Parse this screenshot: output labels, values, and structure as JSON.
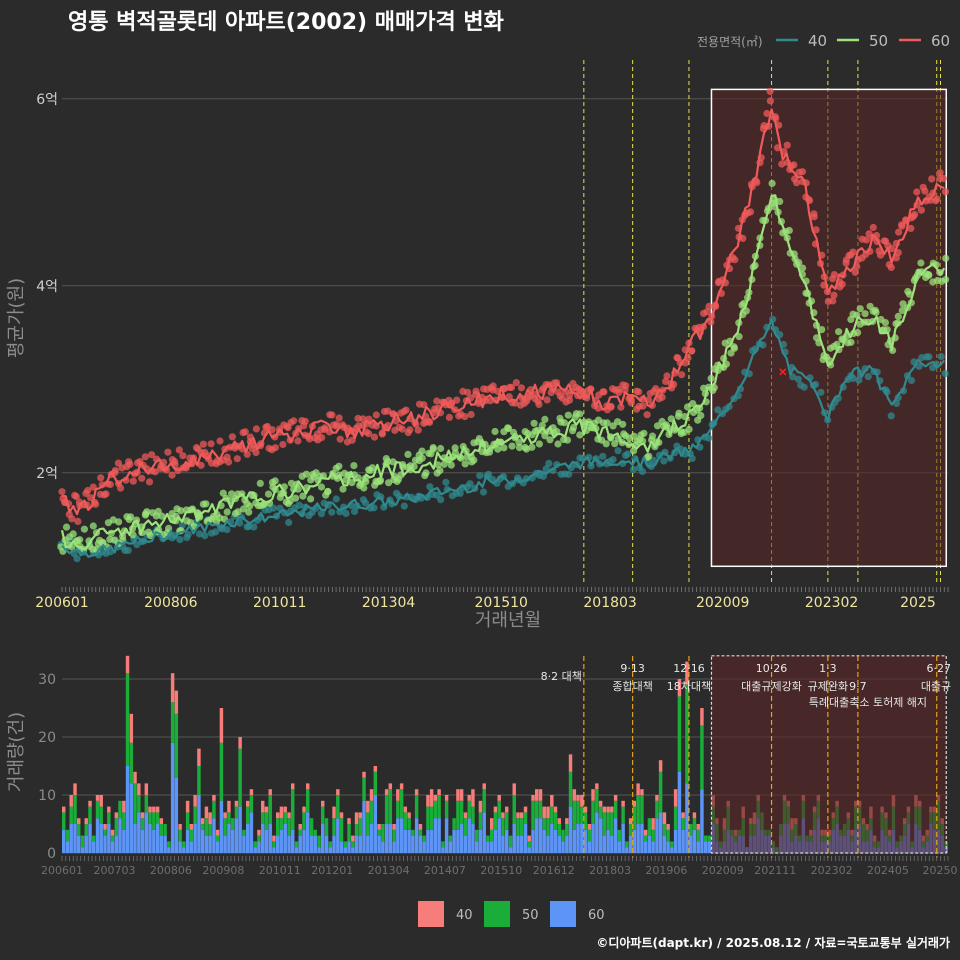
{
  "title": "영통 벽적골롯데 아파트(2002) 매매가격 변화",
  "footer": "©디아파트(dapt.kr) / 2025.08.12 / 자료=국토교통부 실거래가",
  "colors": {
    "background": "#2b2b2b",
    "series_40_line": "#2f8a8f",
    "series_50_line": "#9be37a",
    "series_60_line": "#ef5a5a",
    "bar_40": "#f77d7a",
    "bar_50": "#1aad3a",
    "bar_60": "#5d95f7",
    "vline": "#e8e24a",
    "vline_bottom": "#e3a51b",
    "highlight": "#5a2424"
  },
  "chart_data": [
    {
      "type": "line",
      "title": "영통 벽적골롯데 아파트(2002) 매매가격 변화",
      "xlabel": "거래년월",
      "ylabel": "평균가(원)",
      "x_range": [
        "2006-01",
        "2025-08"
      ],
      "ylim": [
        0.8,
        6.5
      ],
      "y_unit": "억",
      "yticks": [
        2,
        4,
        6
      ],
      "ytick_labels": [
        "2억",
        "4억",
        "6억"
      ],
      "xtick_labels": [
        "200601",
        "200806",
        "201011",
        "201304",
        "201510",
        "201803",
        "202009",
        "202302",
        "2025"
      ],
      "legend": {
        "title": "전용면적(㎡)",
        "position": "top-right",
        "entries": [
          "40",
          "50",
          "60"
        ]
      },
      "vlines": [
        "2017-08",
        "2018-09",
        "2019-12",
        "2021-10",
        "2023-01",
        "2023-09",
        "2025-06",
        "2025-07"
      ],
      "highlight_box": {
        "from": "2020-06",
        "to": "2025-08",
        "ymin": 1.0,
        "ymax": 6.1
      },
      "marker_x": {
        "date": "2022-01",
        "value": 3.08
      },
      "series": [
        {
          "name": "40",
          "points": [
            [
              "2006-01",
              1.22
            ],
            [
              "2006-06",
              1.15
            ],
            [
              "2007-01",
              1.17
            ],
            [
              "2007-06",
              1.24
            ],
            [
              "2008-01",
              1.3
            ],
            [
              "2008-06",
              1.35
            ],
            [
              "2009-01",
              1.4
            ],
            [
              "2009-06",
              1.45
            ],
            [
              "2010-01",
              1.5
            ],
            [
              "2010-06",
              1.52
            ],
            [
              "2011-01",
              1.55
            ],
            [
              "2011-06",
              1.6
            ],
            [
              "2012-01",
              1.64
            ],
            [
              "2012-06",
              1.66
            ],
            [
              "2013-01",
              1.68
            ],
            [
              "2013-06",
              1.7
            ],
            [
              "2014-01",
              1.75
            ],
            [
              "2014-06",
              1.8
            ],
            [
              "2015-01",
              1.85
            ],
            [
              "2015-06",
              1.9
            ],
            [
              "2016-01",
              1.93
            ],
            [
              "2016-06",
              1.98
            ],
            [
              "2017-01",
              2.05
            ],
            [
              "2017-06",
              2.1
            ],
            [
              "2018-01",
              2.12
            ],
            [
              "2018-06",
              2.15
            ],
            [
              "2019-01",
              2.1
            ],
            [
              "2019-06",
              2.18
            ],
            [
              "2020-01",
              2.25
            ],
            [
              "2020-06",
              2.45
            ],
            [
              "2021-01",
              2.9
            ],
            [
              "2021-06",
              3.3
            ],
            [
              "2021-10",
              3.6
            ],
            [
              "2022-03",
              3.1
            ],
            [
              "2022-10",
              2.9
            ],
            [
              "2023-01",
              2.6
            ],
            [
              "2023-06",
              3.05
            ],
            [
              "2024-01",
              3.1
            ],
            [
              "2024-06",
              2.7
            ],
            [
              "2025-01",
              3.2
            ],
            [
              "2025-08",
              3.15
            ]
          ]
        },
        {
          "name": "50",
          "points": [
            [
              "2006-01",
              1.3
            ],
            [
              "2006-06",
              1.25
            ],
            [
              "2007-01",
              1.35
            ],
            [
              "2007-06",
              1.4
            ],
            [
              "2008-01",
              1.45
            ],
            [
              "2008-06",
              1.5
            ],
            [
              "2009-01",
              1.55
            ],
            [
              "2009-06",
              1.62
            ],
            [
              "2010-01",
              1.7
            ],
            [
              "2010-06",
              1.75
            ],
            [
              "2011-01",
              1.8
            ],
            [
              "2011-06",
              1.85
            ],
            [
              "2012-01",
              1.92
            ],
            [
              "2012-06",
              1.95
            ],
            [
              "2013-01",
              2.0
            ],
            [
              "2013-06",
              2.05
            ],
            [
              "2014-01",
              2.1
            ],
            [
              "2014-06",
              2.15
            ],
            [
              "2015-01",
              2.2
            ],
            [
              "2015-06",
              2.28
            ],
            [
              "2016-01",
              2.35
            ],
            [
              "2016-06",
              2.4
            ],
            [
              "2017-01",
              2.45
            ],
            [
              "2017-06",
              2.5
            ],
            [
              "2018-01",
              2.45
            ],
            [
              "2018-06",
              2.4
            ],
            [
              "2019-01",
              2.3
            ],
            [
              "2019-06",
              2.45
            ],
            [
              "2020-01",
              2.6
            ],
            [
              "2020-06",
              2.95
            ],
            [
              "2021-01",
              3.5
            ],
            [
              "2021-06",
              4.3
            ],
            [
              "2021-10",
              5.0
            ],
            [
              "2022-01",
              4.7
            ],
            [
              "2022-06",
              4.1
            ],
            [
              "2023-01",
              3.2
            ],
            [
              "2023-06",
              3.5
            ],
            [
              "2024-01",
              3.7
            ],
            [
              "2024-06",
              3.4
            ],
            [
              "2025-01",
              4.1
            ],
            [
              "2025-08",
              4.2
            ]
          ]
        },
        {
          "name": "60",
          "points": [
            [
              "2006-01",
              1.7
            ],
            [
              "2006-06",
              1.6
            ],
            [
              "2007-01",
              1.9
            ],
            [
              "2007-06",
              2.0
            ],
            [
              "2008-01",
              2.05
            ],
            [
              "2008-06",
              2.1
            ],
            [
              "2009-01",
              2.15
            ],
            [
              "2009-06",
              2.2
            ],
            [
              "2010-01",
              2.3
            ],
            [
              "2010-06",
              2.35
            ],
            [
              "2011-01",
              2.4
            ],
            [
              "2011-06",
              2.45
            ],
            [
              "2012-01",
              2.5
            ],
            [
              "2012-06",
              2.45
            ],
            [
              "2013-01",
              2.5
            ],
            [
              "2013-06",
              2.55
            ],
            [
              "2014-01",
              2.6
            ],
            [
              "2014-06",
              2.7
            ],
            [
              "2015-01",
              2.75
            ],
            [
              "2015-06",
              2.8
            ],
            [
              "2016-01",
              2.85
            ],
            [
              "2016-06",
              2.85
            ],
            [
              "2017-01",
              2.9
            ],
            [
              "2017-06",
              2.85
            ],
            [
              "2018-01",
              2.75
            ],
            [
              "2018-06",
              2.8
            ],
            [
              "2019-01",
              2.75
            ],
            [
              "2019-06",
              2.9
            ],
            [
              "2020-01",
              3.4
            ],
            [
              "2020-06",
              3.7
            ],
            [
              "2021-01",
              4.5
            ],
            [
              "2021-06",
              5.2
            ],
            [
              "2021-10",
              5.95
            ],
            [
              "2022-01",
              5.4
            ],
            [
              "2022-06",
              5.2
            ],
            [
              "2023-01",
              3.9
            ],
            [
              "2023-06",
              4.2
            ],
            [
              "2024-01",
              4.5
            ],
            [
              "2024-06",
              4.3
            ],
            [
              "2025-01",
              4.9
            ],
            [
              "2025-08",
              5.1
            ]
          ]
        }
      ]
    },
    {
      "type": "bar",
      "stacked": true,
      "ylabel": "거래량(건)",
      "ylim": [
        0,
        35
      ],
      "yticks": [
        0,
        10,
        20,
        30
      ],
      "xtick_labels": [
        "200601",
        "200703",
        "200806",
        "200908",
        "201011",
        "201201",
        "201304",
        "201407",
        "201510",
        "201612",
        "201803",
        "201906",
        "202009",
        "202111",
        "202302",
        "202405",
        "20250"
      ],
      "legend": {
        "position": "bottom",
        "entries": [
          "40",
          "50",
          "60"
        ]
      },
      "highlight_box": {
        "from": "2020-06",
        "to": "2025-08",
        "ymin": 0,
        "ymax": 34
      },
      "policy_annotations": [
        {
          "date": "2017-08",
          "label": "8·2 대책"
        },
        {
          "date": "2018-09",
          "label": "9·13",
          "label2": "종합대책"
        },
        {
          "date": "2019-12",
          "label": "12·16",
          "label2": "18차대책"
        },
        {
          "date": "2021-10",
          "label": "10·26",
          "label2": "대출규제강화"
        },
        {
          "date": "2023-01",
          "label": "1·3",
          "label2": "규제완화"
        },
        {
          "date": "2023-09",
          "label": "9·7",
          "label2": "특례대출축소 토허제 해지"
        },
        {
          "date": "2025-06",
          "label": "6·27",
          "label2": "대출규"
        }
      ],
      "series_order": [
        "60",
        "50",
        "40"
      ],
      "monthly_totals_sample": {
        "peak": 34,
        "peak_date": "2007-06",
        "second_peak": 31,
        "second_peak_date": "2008-06"
      }
    }
  ]
}
